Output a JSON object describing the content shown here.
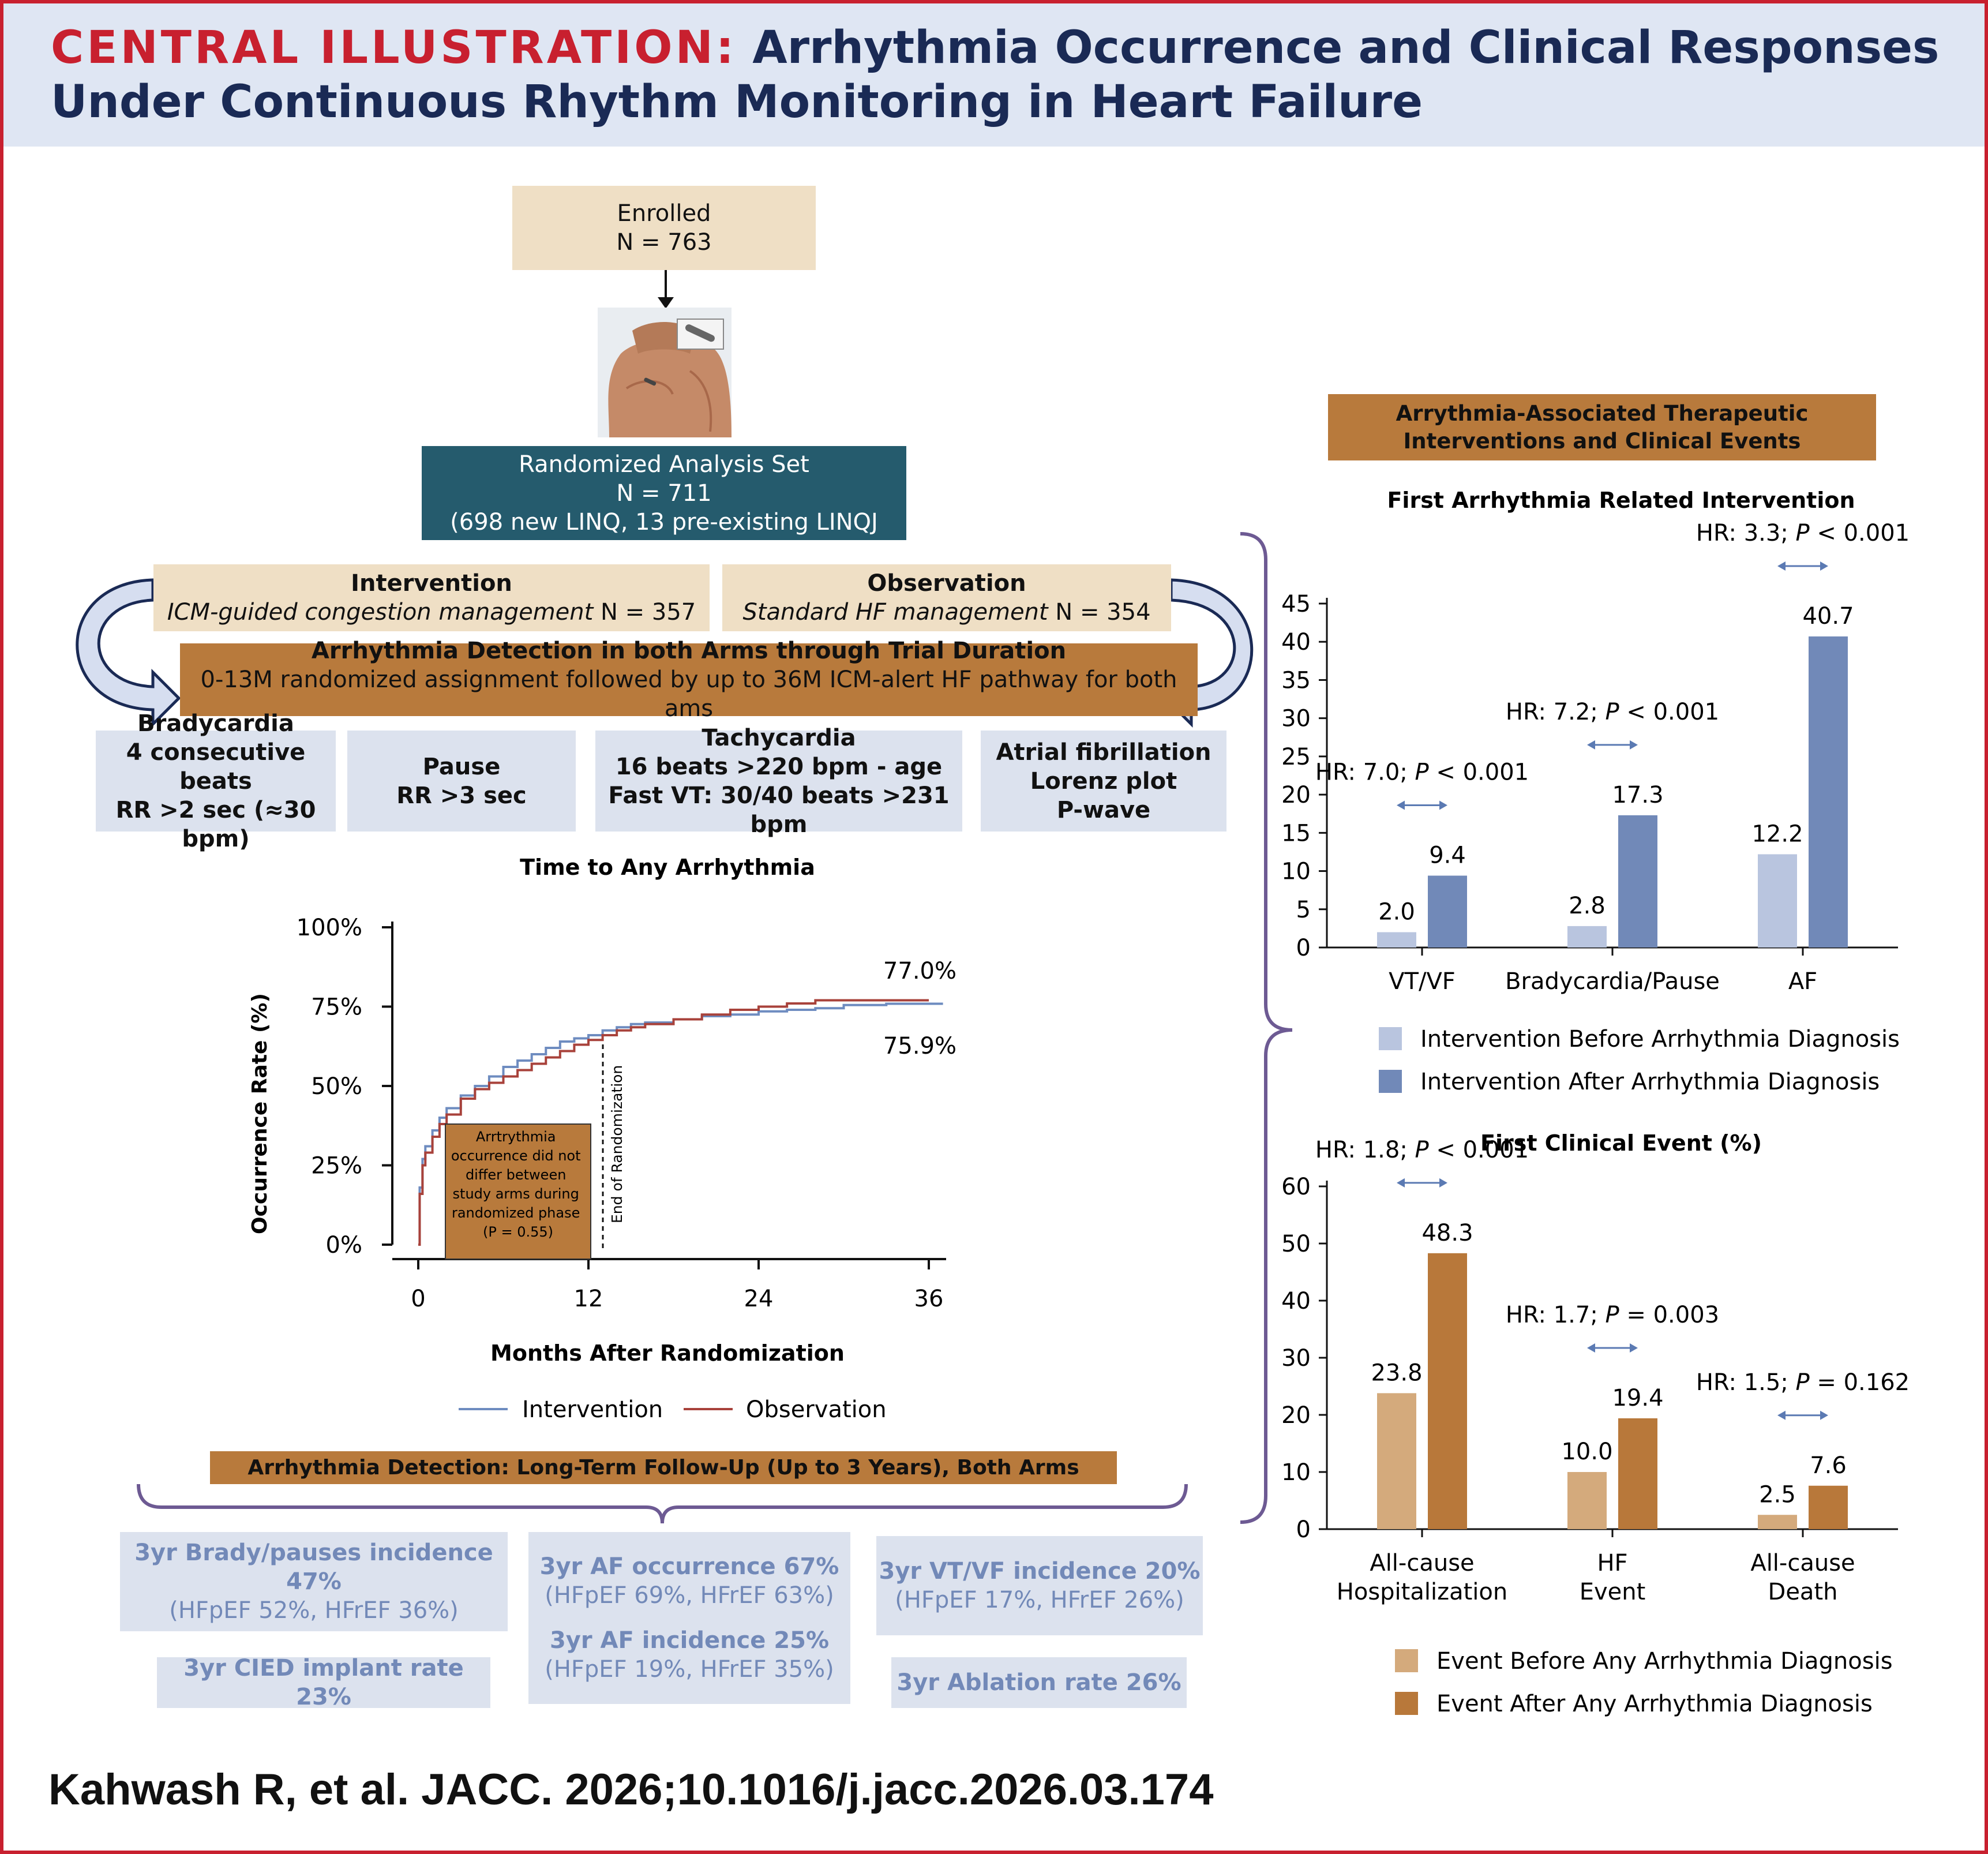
{
  "header": {
    "label": "CENTRAL ILLUSTRATION:",
    "title_line1": "Arrhythmia Occurrence and Clinical Responses",
    "title_line2": "Under Continuous Rhythm Monitoring in Heart Failure"
  },
  "flow": {
    "enrolled_label": "Enrolled",
    "enrolled_n": "N = 763",
    "randomized_title": "Randomized Analysis Set",
    "randomized_n": "N = 711",
    "randomized_detail": "(698 new LINQ, 13 pre-existing LINQJ",
    "intervention_title": "Intervention",
    "intervention_desc": "ICM-guided congestion management",
    "intervention_n": " N = 357",
    "observation_title": "Observation",
    "observation_desc": "Standard HF management",
    "observation_n": " N = 354",
    "detection_title": "Arrhythmia Detection in both Arms through Trial Duration",
    "detection_desc": "0-13M randomized assignment followed by up to 36M ICM-alert HF pathway for both ams"
  },
  "criteria": [
    {
      "title": "Bradycardia",
      "line1": "4 consecutive beats",
      "line2": "RR >2 sec (≈30 bpm)"
    },
    {
      "title": "Pause",
      "line1": "RR >3 sec"
    },
    {
      "title": "Tachycardia",
      "line1": "16 beats >220 bpm - age",
      "line2": "Fast VT: 30/40 beats >231 bpm"
    },
    {
      "title": "Atrial fibrillation",
      "line1": "Lorenz plot",
      "line2": "P-wave"
    }
  ],
  "km": {
    "title": "Time to Any Arrhythmia",
    "ylabel": "Occurrence Rate (%)",
    "xlabel": "Months After Randomization",
    "yticks": [
      "100%",
      "75%",
      "50%",
      "25%",
      "0%"
    ],
    "xticks": [
      "0",
      "12",
      "24",
      "36"
    ],
    "end_label_obs": "77.0%",
    "end_label_int": "75.9%",
    "vline_label": "End of Randomization",
    "note_lines": [
      "Arrtrythmia",
      "occurrence did not",
      "differ between",
      "study arms during",
      "randomized phase",
      "(P = 0.55)"
    ],
    "legend_intervention": "Intervention",
    "legend_observation": "Observation",
    "colors": {
      "intervention": "#6e8cc0",
      "observation": "#a8423b"
    }
  },
  "longterm": {
    "title": "Arrhythmia Detection: Long-Term Follow-Up (Up to 3 Years), Both Arms",
    "brady_title": "3yr Brady/pauses incidence 47%",
    "brady_sub": "(HFpEF 52%, HFrEF 36%)",
    "af_occ_title": "3yr AF occurrence 67%",
    "af_occ_sub": "(HFpEF 69%, HFrEF 63%)",
    "af_inc_title": "3yr AF incidence 25%",
    "af_inc_sub": "(HFpEF 19%, HFrEF 35%)",
    "vt_title": "3yr VT/VF incidence 20%",
    "vt_sub": "(HFpEF 17%, HFrEF 26%)",
    "cied": "3yr CIED implant rate 23%",
    "ablation": "3yr Ablation rate 26%"
  },
  "right_header": {
    "line1": "Arrythmia-Associated Therapeutic",
    "line2": "Interventions and Clinical Events"
  },
  "citation": "Kahwash R, et al. JACC. 2026;10.1016/j.jacc.2026.03.174",
  "chart_data": [
    {
      "type": "line",
      "title": "Time to Any Arrhythmia",
      "xlabel": "Months After Randomization",
      "ylabel": "Occurrence Rate (%)",
      "xlim": [
        0,
        36
      ],
      "ylim": [
        0,
        100
      ],
      "series": [
        {
          "name": "Intervention",
          "x": [
            0,
            0.1,
            0.3,
            0.5,
            1,
            1.5,
            2,
            3,
            4,
            5,
            6,
            7,
            8,
            9,
            10,
            11,
            12,
            13,
            14,
            15,
            16,
            18,
            20,
            22,
            24,
            26,
            28,
            30,
            33,
            37
          ],
          "y": [
            0,
            18,
            27,
            31,
            36,
            40,
            43,
            47,
            50,
            53,
            56,
            58,
            60,
            62,
            64,
            65,
            66,
            67.5,
            68.5,
            69.5,
            70,
            71,
            72,
            72.5,
            73.5,
            74,
            74.5,
            75.5,
            75.9,
            75.9
          ]
        },
        {
          "name": "Observation",
          "x": [
            0,
            0.1,
            0.3,
            0.5,
            1,
            1.5,
            2,
            3,
            4,
            5,
            6,
            7,
            8,
            9,
            10,
            11,
            12,
            13,
            14,
            15,
            16,
            18,
            20,
            22,
            24,
            26,
            28,
            30,
            32,
            36
          ],
          "y": [
            0,
            16,
            25,
            29,
            34,
            38,
            41,
            46,
            49,
            51,
            53,
            55,
            57,
            59,
            61,
            63,
            64.5,
            66,
            67.5,
            68.5,
            69.5,
            71,
            72.5,
            74,
            75,
            76,
            77,
            77,
            77,
            77
          ]
        }
      ],
      "annotations": [
        "77.0%",
        "75.9%",
        "End of Randomization",
        "P = 0.55"
      ]
    },
    {
      "type": "bar",
      "title": "First Arrhythmia Related Intervention",
      "categories": [
        "VT/VF",
        "Bradycardia/Pause",
        "AF"
      ],
      "ylim": [
        0,
        45
      ],
      "yticks": [
        0,
        5,
        10,
        15,
        20,
        25,
        30,
        35,
        40,
        45
      ],
      "series": [
        {
          "name": "Intervention Before Arrhythmia Diagnosis",
          "values": [
            2.0,
            2.8,
            12.2
          ],
          "color": "#b9c5df"
        },
        {
          "name": "Intervention After Arrhythmia Diagnosis",
          "values": [
            9.4,
            17.3,
            40.7
          ],
          "color": "#7189b8"
        }
      ],
      "hr_labels": [
        "HR: 7.0; P < 0.001",
        "HR: 7.2; P < 0.001",
        "HR: 3.3; P < 0.001"
      ],
      "legend": "bottom"
    },
    {
      "type": "bar",
      "title": "First Clinical Event (%)",
      "categories": [
        "All-cause Hospitalization",
        "HF Event",
        "All-cause Death"
      ],
      "ylim": [
        0,
        60
      ],
      "yticks": [
        0,
        10,
        20,
        30,
        40,
        50,
        60
      ],
      "series": [
        {
          "name": "Event Before Any Arrhythmia Diagnosis",
          "values": [
            23.8,
            10.0,
            2.5
          ],
          "color": "#d4aa7c"
        },
        {
          "name": "Event After Any Arrhythmia Diagnosis",
          "values": [
            48.3,
            19.4,
            7.6
          ],
          "color": "#b8783a"
        }
      ],
      "hr_labels": [
        "HR: 1.8; P < 0.001",
        "HR: 1.7; P = 0.003",
        "HR: 1.5; P = 0.162"
      ],
      "legend": "bottom"
    }
  ]
}
